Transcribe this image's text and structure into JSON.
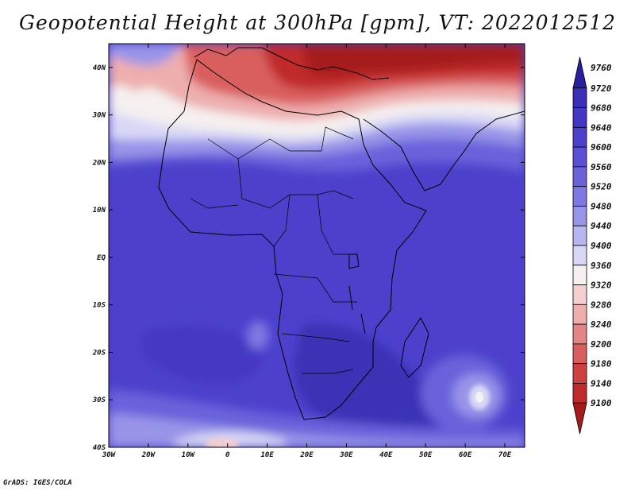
{
  "title": "Geopotential Height at 300hPa [gpm], VT: 2022012512",
  "credit": "GrADS: IGES/COLA",
  "x_axis": {
    "tick_values": [
      -30,
      -20,
      -10,
      0,
      10,
      20,
      30,
      40,
      50,
      60,
      70
    ],
    "tick_labels": [
      "30W",
      "20W",
      "10W",
      "0",
      "10E",
      "20E",
      "30E",
      "40E",
      "50E",
      "60E",
      "70E"
    ],
    "range": [
      -30,
      75
    ]
  },
  "y_axis": {
    "tick_values": [
      40,
      30,
      20,
      10,
      0,
      -10,
      -20,
      -30,
      -40
    ],
    "tick_labels": [
      "40N",
      "30N",
      "20N",
      "10N",
      "EQ",
      "10S",
      "20S",
      "30S",
      "40S"
    ],
    "range": [
      -40,
      45
    ]
  },
  "colorbar": {
    "labels": [
      "9760",
      "9720",
      "9680",
      "9640",
      "9600",
      "9560",
      "9520",
      "9480",
      "9440",
      "9400",
      "9360",
      "9320",
      "9280",
      "9240",
      "9200",
      "9180",
      "9140",
      "9100"
    ],
    "colors": [
      "#2a1f9e",
      "#3a30b6",
      "#4437c3",
      "#4d41cc",
      "#5a50d4",
      "#6a62db",
      "#7d78e2",
      "#9894e8",
      "#b8b6ef",
      "#d8d8f6",
      "#f6f0f0",
      "#f5cfcf",
      "#eeaeae",
      "#e48585",
      "#d95e5e",
      "#cf4040",
      "#c02c2c",
      "#a51b1b"
    ]
  },
  "colors": {
    "land_outline": "#000000",
    "deep_blue": "#3a30b6",
    "mid_blue": "#4d41cc",
    "dark_red": "#a51b1b"
  }
}
